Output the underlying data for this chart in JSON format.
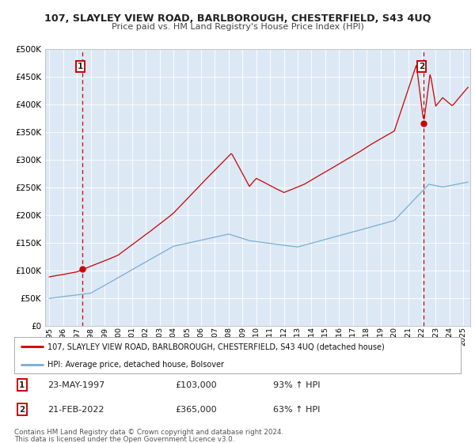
{
  "title": "107, SLAYLEY VIEW ROAD, BARLBOROUGH, CHESTERFIELD, S43 4UQ",
  "subtitle": "Price paid vs. HM Land Registry's House Price Index (HPI)",
  "legend_line1": "107, SLAYLEY VIEW ROAD, BARLBOROUGH, CHESTERFIELD, S43 4UQ (detached house)",
  "legend_line2": "HPI: Average price, detached house, Bolsover",
  "table_rows": [
    {
      "num": "1",
      "date": "23-MAY-1997",
      "price": "£103,000",
      "hpi": "93% ↑ HPI"
    },
    {
      "num": "2",
      "date": "21-FEB-2022",
      "price": "£365,000",
      "hpi": "63% ↑ HPI"
    }
  ],
  "footnote1": "Contains HM Land Registry data © Crown copyright and database right 2024.",
  "footnote2": "This data is licensed under the Open Government Licence v3.0.",
  "red_color": "#cc0000",
  "blue_color": "#7aadd4",
  "background_color": "#dce9f5",
  "sale1_date_num": 1997.39,
  "sale1_value": 103000,
  "sale2_date_num": 2022.13,
  "sale2_value": 365000,
  "ylim": [
    0,
    500000
  ],
  "xlim_start": 1994.7,
  "xlim_end": 2025.5
}
